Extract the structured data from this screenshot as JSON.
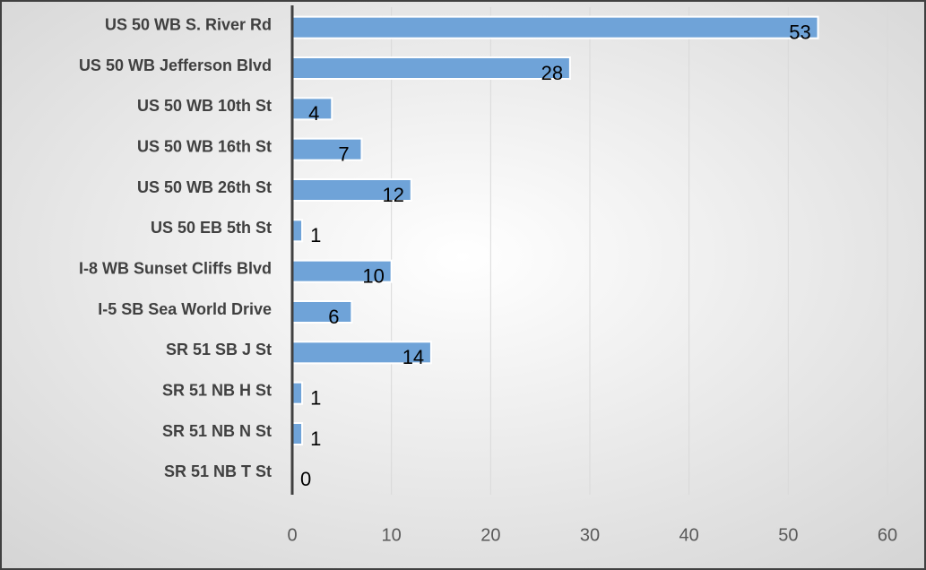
{
  "chart_data": {
    "type": "bar",
    "orientation": "horizontal",
    "categories": [
      "US 50 WB S. River Rd",
      "US 50 WB Jefferson Blvd",
      "US 50 WB 10th St",
      "US 50 WB 16th St",
      "US 50 WB 26th St",
      "US 50 EB 5th St",
      "I-8 WB Sunset Cliffs Blvd",
      "I-5 SB Sea World Drive",
      "SR 51 SB J St",
      "SR 51 NB H St",
      "SR 51 NB N St",
      "SR 51 NB T St"
    ],
    "values": [
      53,
      28,
      4,
      7,
      12,
      1,
      10,
      6,
      14,
      1,
      1,
      0
    ],
    "color": "#6fa3d8",
    "xlim": [
      0,
      60
    ],
    "xticks": [
      0,
      10,
      20,
      30,
      40,
      50,
      60
    ],
    "grid": true
  }
}
